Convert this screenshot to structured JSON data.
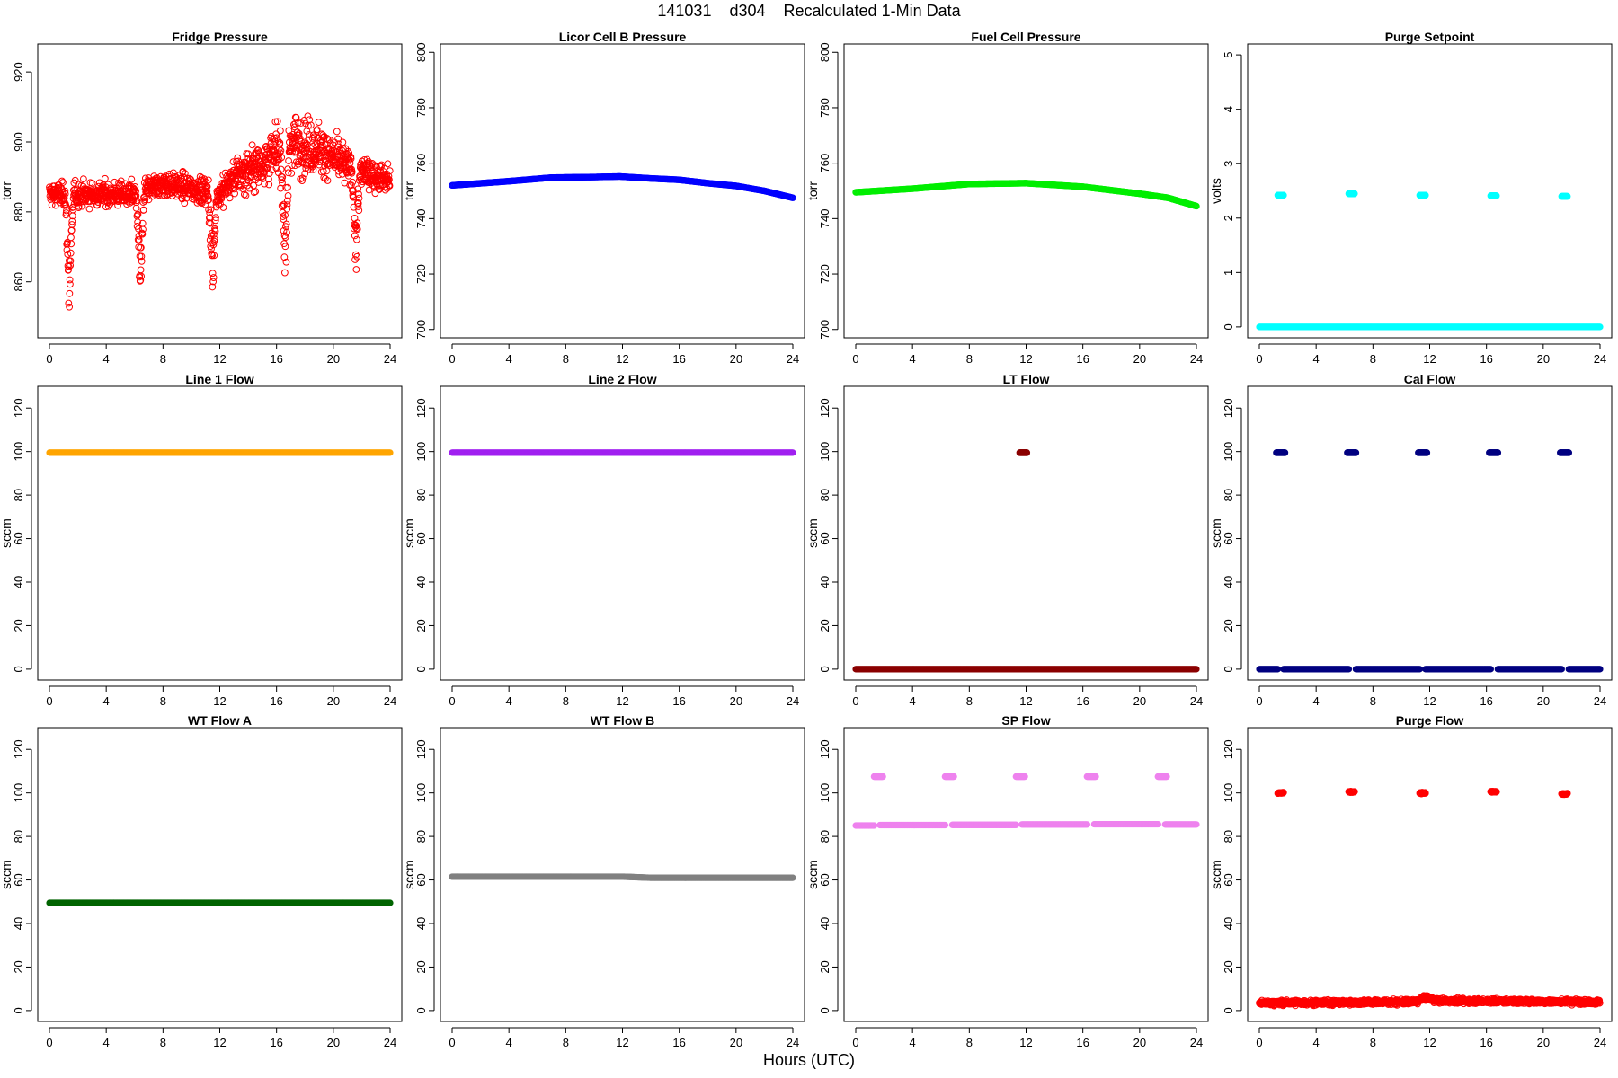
{
  "header": {
    "title": "141031    d304    Recalculated 1-Min Data"
  },
  "footer": {
    "xlabel": "Hours (UTC)"
  },
  "chart_data": [
    {
      "type": "scatter",
      "title": "Fridge Pressure",
      "ylabel": "torr",
      "color": "#ff0000",
      "marker": "open-circle",
      "xlim": [
        0,
        24
      ],
      "ylim": [
        844,
        928
      ],
      "xticks": [
        0,
        4,
        8,
        12,
        16,
        20,
        24
      ],
      "yticks": [
        860,
        880,
        900,
        920
      ],
      "series": [
        {
          "kind": "noise",
          "base": [
            [
              0,
              885
            ],
            [
              6,
              885
            ],
            [
              8,
              888
            ],
            [
              11,
              886
            ],
            [
              12,
              885
            ],
            [
              13,
              890
            ],
            [
              15,
              894
            ],
            [
              17,
              900
            ],
            [
              19,
              898
            ],
            [
              21,
              893
            ],
            [
              24,
              889
            ]
          ],
          "noise": [
            [
              0,
              6
            ],
            [
              12,
              7
            ],
            [
              14,
              12
            ],
            [
              18,
              15
            ],
            [
              21,
              10
            ],
            [
              24,
              7
            ]
          ],
          "dips": [
            [
              1.4,
              852
            ],
            [
              6.4,
              855
            ],
            [
              11.5,
              857
            ],
            [
              16.6,
              857
            ],
            [
              21.6,
              863
            ]
          ]
        }
      ]
    },
    {
      "type": "scatter",
      "title": "Licor Cell B Pressure",
      "ylabel": "torr",
      "color": "#0000ff",
      "marker": "open-circle",
      "xlim": [
        0,
        24
      ],
      "ylim": [
        697,
        803
      ],
      "xticks": [
        0,
        4,
        8,
        12,
        16,
        20,
        24
      ],
      "yticks": [
        700,
        720,
        740,
        760,
        780,
        800
      ],
      "series": [
        {
          "kind": "line",
          "points": [
            [
              0,
              752
            ],
            [
              4,
              753.5
            ],
            [
              7,
              754.8
            ],
            [
              10,
              755
            ],
            [
              11.8,
              755.2
            ],
            [
              14,
              754.5
            ],
            [
              16,
              754
            ],
            [
              18,
              752.8
            ],
            [
              20,
              751.8
            ],
            [
              22,
              750
            ],
            [
              24,
              747.5
            ]
          ]
        }
      ]
    },
    {
      "type": "scatter",
      "title": "Fuel Cell Pressure",
      "ylabel": "torr",
      "color": "#00ee00",
      "marker": "open-circle",
      "xlim": [
        0,
        24
      ],
      "ylim": [
        697,
        803
      ],
      "xticks": [
        0,
        4,
        8,
        12,
        16,
        20,
        24
      ],
      "yticks": [
        700,
        720,
        740,
        760,
        780,
        800
      ],
      "series": [
        {
          "kind": "line",
          "points": [
            [
              0,
              749.5
            ],
            [
              4,
              750.8
            ],
            [
              8,
              752.5
            ],
            [
              12,
              752.8
            ],
            [
              16,
              751.5
            ],
            [
              20,
              749
            ],
            [
              22,
              747.5
            ],
            [
              24,
              744.5
            ]
          ]
        }
      ]
    },
    {
      "type": "scatter",
      "title": "Purge Setpoint",
      "ylabel": "volts",
      "color": "#00ffff",
      "marker": "filled",
      "xlim": [
        0,
        24
      ],
      "ylim": [
        -0.2,
        5.2
      ],
      "xticks": [
        0,
        4,
        8,
        12,
        16,
        20,
        24
      ],
      "yticks": [
        0,
        1,
        2,
        3,
        4,
        5
      ],
      "series": [
        {
          "kind": "line",
          "points": [
            [
              0,
              0
            ],
            [
              24,
              0
            ]
          ]
        },
        {
          "kind": "clusters",
          "x": [
            1.5,
            6.5,
            11.5,
            16.5,
            21.5
          ],
          "y": [
            2.42,
            2.45,
            2.42,
            2.41,
            2.4
          ],
          "width": 0.4
        }
      ]
    },
    {
      "type": "scatter",
      "title": "Line 1 Flow",
      "ylabel": "sccm",
      "color": "#ffa500",
      "marker": "filled",
      "xlim": [
        0,
        24
      ],
      "ylim": [
        -5,
        130
      ],
      "xticks": [
        0,
        4,
        8,
        12,
        16,
        20,
        24
      ],
      "yticks": [
        0,
        20,
        40,
        60,
        80,
        100,
        120
      ],
      "series": [
        {
          "kind": "line",
          "points": [
            [
              0,
              99.5
            ],
            [
              24,
              99.5
            ]
          ]
        }
      ]
    },
    {
      "type": "scatter",
      "title": "Line 2 Flow",
      "ylabel": "sccm",
      "color": "#a020f0",
      "marker": "filled",
      "xlim": [
        0,
        24
      ],
      "ylim": [
        -5,
        130
      ],
      "xticks": [
        0,
        4,
        8,
        12,
        16,
        20,
        24
      ],
      "yticks": [
        0,
        20,
        40,
        60,
        80,
        100,
        120
      ],
      "series": [
        {
          "kind": "line",
          "points": [
            [
              0,
              99.5
            ],
            [
              24,
              99.5
            ]
          ]
        }
      ]
    },
    {
      "type": "scatter",
      "title": "LT Flow",
      "ylabel": "sccm",
      "color": "#8b0000",
      "marker": "filled",
      "xlim": [
        0,
        24
      ],
      "ylim": [
        -5,
        130
      ],
      "xticks": [
        0,
        4,
        8,
        12,
        16,
        20,
        24
      ],
      "yticks": [
        0,
        20,
        40,
        60,
        80,
        100,
        120
      ],
      "series": [
        {
          "kind": "line",
          "points": [
            [
              0,
              0
            ],
            [
              24,
              0
            ]
          ]
        },
        {
          "kind": "clusters",
          "x": [
            11.8
          ],
          "y": [
            99.5
          ],
          "width": 0.5
        }
      ]
    },
    {
      "type": "scatter",
      "title": "Cal Flow",
      "ylabel": "sccm",
      "color": "#000080",
      "marker": "filled",
      "xlim": [
        0,
        24
      ],
      "ylim": [
        -5,
        130
      ],
      "xticks": [
        0,
        4,
        8,
        12,
        16,
        20,
        24
      ],
      "yticks": [
        0,
        20,
        40,
        60,
        80,
        100,
        120
      ],
      "series": [
        {
          "kind": "segments",
          "segments": [
            [
              0,
              1.3
            ],
            [
              1.7,
              6.3
            ],
            [
              6.8,
              11.3
            ],
            [
              11.7,
              16.3
            ],
            [
              16.8,
              21.3
            ],
            [
              21.8,
              24
            ]
          ],
          "y": 0
        },
        {
          "kind": "clusters",
          "x": [
            1.5,
            6.5,
            11.5,
            16.5,
            21.5
          ],
          "y": [
            99.5,
            99.5,
            99.5,
            99.5,
            99.5
          ],
          "width": 0.6
        }
      ]
    },
    {
      "type": "scatter",
      "title": "WT Flow A",
      "ylabel": "sccm",
      "color": "#006400",
      "marker": "filled",
      "xlim": [
        0,
        24
      ],
      "ylim": [
        -5,
        130
      ],
      "xticks": [
        0,
        4,
        8,
        12,
        16,
        20,
        24
      ],
      "yticks": [
        0,
        20,
        40,
        60,
        80,
        100,
        120
      ],
      "series": [
        {
          "kind": "line",
          "points": [
            [
              0,
              49.5
            ],
            [
              24,
              49.5
            ]
          ]
        }
      ]
    },
    {
      "type": "scatter",
      "title": "WT Flow B",
      "ylabel": "sccm",
      "color": "#808080",
      "marker": "filled",
      "xlim": [
        0,
        24
      ],
      "ylim": [
        -5,
        130
      ],
      "xticks": [
        0,
        4,
        8,
        12,
        16,
        20,
        24
      ],
      "yticks": [
        0,
        20,
        40,
        60,
        80,
        100,
        120
      ],
      "series": [
        {
          "kind": "line",
          "points": [
            [
              0,
              61.5
            ],
            [
              12,
              61.5
            ],
            [
              14,
              61
            ],
            [
              24,
              61
            ]
          ]
        }
      ]
    },
    {
      "type": "scatter",
      "title": "SP Flow",
      "ylabel": "sccm",
      "color": "#ee82ee",
      "marker": "filled",
      "xlim": [
        0,
        24
      ],
      "ylim": [
        -5,
        130
      ],
      "xticks": [
        0,
        4,
        8,
        12,
        16,
        20,
        24
      ],
      "yticks": [
        0,
        20,
        40,
        60,
        80,
        100,
        120
      ],
      "series": [
        {
          "kind": "segments",
          "segments": [
            [
              0,
              1.3
            ],
            [
              1.7,
              6.3
            ],
            [
              6.8,
              11.3
            ],
            [
              11.7,
              16.3
            ],
            [
              16.8,
              21.3
            ],
            [
              21.8,
              24
            ]
          ],
          "y": [
            85,
            85.2,
            85.3,
            85.5,
            85.6,
            85.5
          ]
        },
        {
          "kind": "clusters",
          "x": [
            1.6,
            6.6,
            11.6,
            16.6,
            21.6
          ],
          "y": [
            107.5,
            107.5,
            107.5,
            107.5,
            107.5
          ],
          "width": 0.6
        }
      ]
    },
    {
      "type": "scatter",
      "title": "Purge Flow",
      "ylabel": "sccm",
      "color": "#ff0000",
      "marker": "open-circle",
      "xlim": [
        0,
        24
      ],
      "ylim": [
        -5,
        130
      ],
      "xticks": [
        0,
        4,
        8,
        12,
        16,
        20,
        24
      ],
      "yticks": [
        0,
        20,
        40,
        60,
        80,
        100,
        120
      ],
      "series": [
        {
          "kind": "noise",
          "base": [
            [
              0,
              3.5
            ],
            [
              11,
              4
            ],
            [
              11.8,
              6
            ],
            [
              12.5,
              4.5
            ],
            [
              24,
              4
            ]
          ],
          "noise": [
            [
              0,
              2
            ],
            [
              24,
              2
            ]
          ],
          "dips": []
        },
        {
          "kind": "clusters",
          "x": [
            1.5,
            6.5,
            11.5,
            16.5,
            21.5
          ],
          "y": [
            100,
            100.5,
            100,
            100.5,
            99.5
          ],
          "width": 0.4
        }
      ]
    }
  ]
}
